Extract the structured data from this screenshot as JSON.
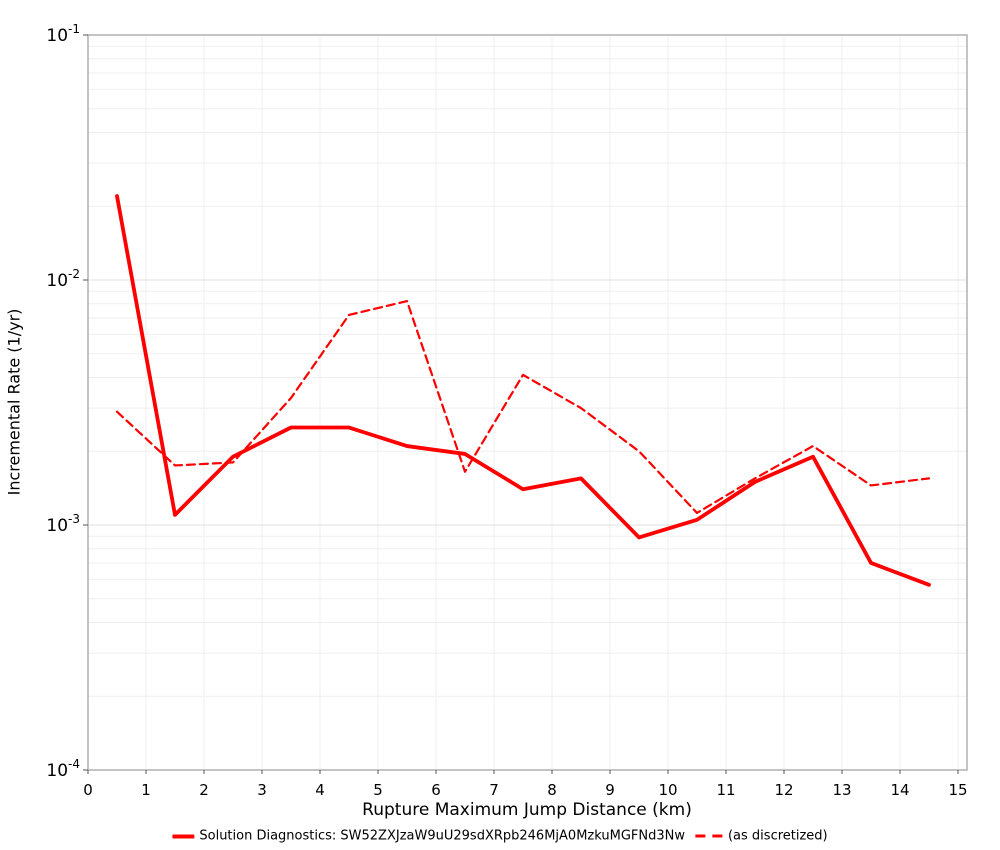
{
  "chart_data": {
    "type": "line",
    "title": "",
    "xlabel": "Rupture Maximum Jump Distance (km)",
    "ylabel": "Incremental Rate (1/yr)",
    "x_scale": "linear",
    "y_scale": "log",
    "xlim": [
      0,
      15.16
    ],
    "ylim": [
      0.0001,
      0.1
    ],
    "grid": true,
    "legend_position": "bottom-center",
    "x_tick_labels": [
      "0",
      "1",
      "2",
      "3",
      "4",
      "5",
      "6",
      "7",
      "8",
      "9",
      "10",
      "11",
      "12",
      "13",
      "14",
      "15"
    ],
    "y_tick_exponents": [
      "-1",
      "-2",
      "-3",
      "-4"
    ],
    "x": [
      0.5,
      1.5,
      2.5,
      3.5,
      4.5,
      5.5,
      6.5,
      7.5,
      8.5,
      9.5,
      10.5,
      11.5,
      12.5,
      13.5,
      14.5
    ],
    "series": [
      {
        "name": "Solution Diagnostics: SW52ZXJzaW9uU29sdXRpb246MjA0MzkuMGFNd3Nw",
        "style": "solid",
        "color": "#ff0000",
        "values": [
          0.022,
          0.0011,
          0.0019,
          0.0025,
          0.0025,
          0.0021,
          0.00195,
          0.0014,
          0.00155,
          0.00089,
          0.00105,
          0.0015,
          0.0019,
          0.0007,
          0.00057
        ]
      },
      {
        "name": "(as discretized)",
        "style": "dashed",
        "color": "#ff0000",
        "values": [
          0.0029,
          0.00175,
          0.0018,
          0.0033,
          0.0072,
          0.0082,
          0.00165,
          0.0041,
          0.003,
          0.002,
          0.00112,
          0.00155,
          0.0021,
          0.00145,
          0.00155
        ]
      }
    ],
    "colors": {
      "line": "#ff0000",
      "grid_minor": "#efefef",
      "grid_major": "#e2e2e2",
      "spine": "#b0b0b0",
      "tick": "#555555",
      "text": "#000000"
    }
  }
}
